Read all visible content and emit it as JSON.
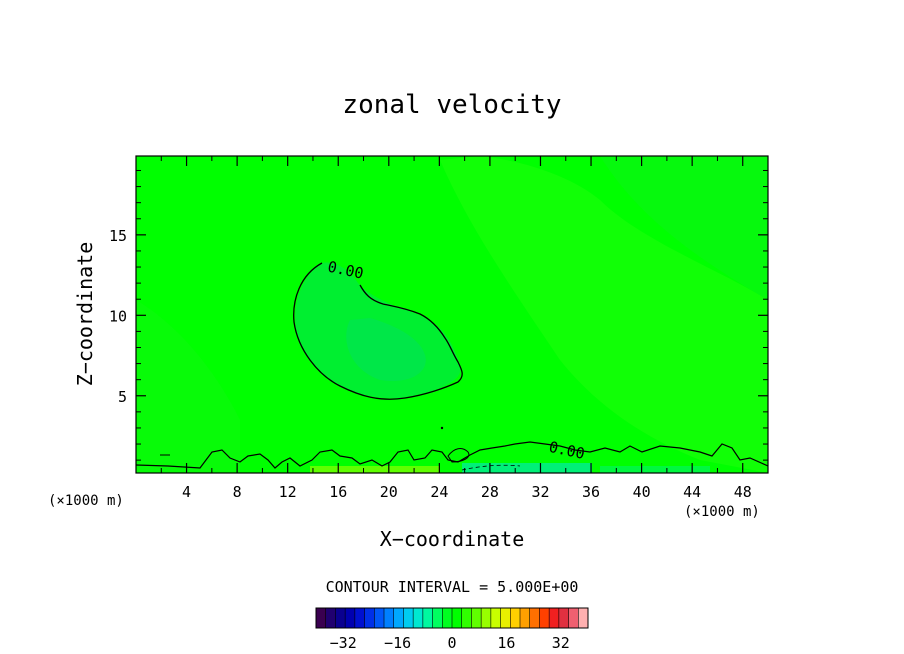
{
  "chart_data": {
    "type": "heatmap",
    "title": "zonal velocity",
    "xlabel": "X−coordinate",
    "ylabel": "Z−coordinate",
    "x_unit_label": "(×1000 m)",
    "z_unit_label": "(×1000 m)",
    "xlim": [
      0,
      50
    ],
    "ylim": [
      0.2,
      19.9
    ],
    "x_ticks": [
      4,
      8,
      12,
      16,
      20,
      24,
      28,
      32,
      36,
      40,
      44,
      48
    ],
    "y_ticks": [
      5,
      10,
      15
    ],
    "contour_labels": [
      {
        "text": "0.00",
        "x": 16.5,
        "z": 12.5
      },
      {
        "text": "0.00",
        "x": 34,
        "z": 1.3
      }
    ],
    "contour_interval_text": "CONTOUR INTERVAL = 5.000E+00",
    "colorbar": {
      "min": -40,
      "max": 40,
      "ticks": [
        -32,
        -16,
        0,
        16,
        32
      ],
      "colors": [
        "#3a0050",
        "#200070",
        "#0a0090",
        "#0000b0",
        "#0010d0",
        "#0030e8",
        "#0058f8",
        "#0080ff",
        "#00a8ff",
        "#00ccf0",
        "#00e8d0",
        "#00f8a0",
        "#00ff60",
        "#00ff20",
        "#00ff00",
        "#30ff00",
        "#60ff00",
        "#98ff00",
        "#c8ff00",
        "#e8f000",
        "#ffd000",
        "#ffa000",
        "#ff7000",
        "#ff4000",
        "#f02020",
        "#e03040",
        "#f06070",
        "#ffb0b0"
      ]
    },
    "field_color": "#00ff00"
  }
}
